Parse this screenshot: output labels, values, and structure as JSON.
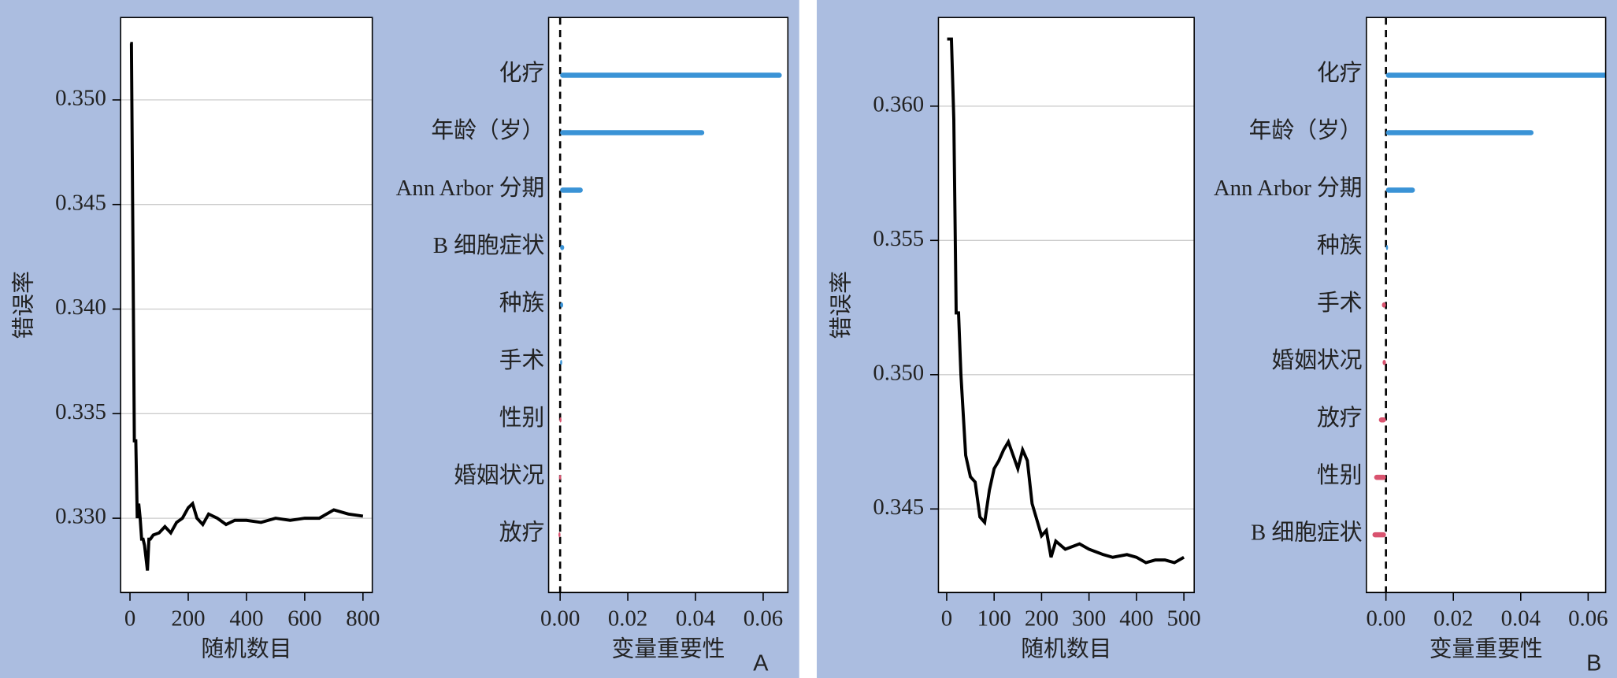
{
  "chart_data": [
    {
      "type": "line",
      "y_label": "错误率",
      "x_label": "随机数目",
      "color": "#000000",
      "grid": true,
      "x": [
        1,
        5,
        10,
        15,
        20,
        25,
        30,
        35,
        40,
        45,
        50,
        60,
        65,
        70,
        80,
        100,
        120,
        140,
        160,
        180,
        200,
        215,
        230,
        250,
        270,
        300,
        330,
        360,
        400,
        450,
        500,
        550,
        600,
        650,
        700,
        750,
        800
      ],
      "values": [
        0.3527,
        0.3527,
        0.3434,
        0.3337,
        0.3337,
        0.33,
        0.3307,
        0.33,
        0.329,
        0.329,
        0.3287,
        0.3275,
        0.329,
        0.329,
        0.3292,
        0.3293,
        0.3296,
        0.3293,
        0.3298,
        0.33,
        0.3305,
        0.3307,
        0.33,
        0.3297,
        0.3302,
        0.33,
        0.3297,
        0.3299,
        0.3299,
        0.3298,
        0.33,
        0.3299,
        0.33,
        0.33,
        0.3304,
        0.3302,
        0.3301
      ],
      "xlim": [
        -32,
        832
      ],
      "xticks": [
        0,
        200,
        400,
        600,
        800
      ],
      "ylim": [
        0.32645,
        0.35394
      ],
      "yticks": [
        {
          "value": 0.33,
          "label": "0.330"
        },
        0.335,
        {
          "value": 0.34,
          "label": "0.340"
        },
        0.345,
        {
          "value": 0.35,
          "label": "0.350"
        }
      ]
    },
    {
      "type": "hbar",
      "x_label": "变量重要性",
      "panel_label": "A",
      "categories": [
        "化疗",
        "年龄（岁）",
        "Ann Arbor 分期",
        "B 细胞症状",
        "种族",
        "手术",
        "性别",
        "婚姻状况",
        "放疗"
      ],
      "values": [
        0.0655,
        0.0426,
        0.0067,
        0.0012,
        0.0009,
        0.0003,
        -0.0002,
        -0.0003,
        -0.0005
      ],
      "colors": [
        "#3a93d6",
        "#3a93d6",
        "#3a93d6",
        "#3a93d6",
        "#3a93d6",
        "#3a93d6",
        "#d9536f",
        "#d9536f",
        "#d9536f"
      ],
      "xlim": [
        -0.0034,
        0.0673
      ],
      "xticks": [
        {
          "value": 0,
          "label": "0.00"
        },
        0.02,
        0.04,
        0.06
      ]
    },
    {
      "type": "line",
      "y_label": "错误率",
      "x_label": "随机数目",
      "color": "#000000",
      "grid": true,
      "x": [
        1,
        10,
        15,
        20,
        25,
        30,
        40,
        50,
        60,
        70,
        80,
        90,
        100,
        110,
        120,
        130,
        140,
        150,
        160,
        170,
        180,
        200,
        210,
        220,
        230,
        250,
        280,
        300,
        330,
        350,
        380,
        400,
        420,
        440,
        460,
        480,
        500
      ],
      "values": [
        0.3625,
        0.3625,
        0.3595,
        0.3523,
        0.3523,
        0.35,
        0.347,
        0.3462,
        0.346,
        0.3447,
        0.3445,
        0.3457,
        0.3465,
        0.3468,
        0.3472,
        0.3475,
        0.347,
        0.3465,
        0.3472,
        0.3468,
        0.3452,
        0.344,
        0.3442,
        0.3432,
        0.3438,
        0.3435,
        0.3437,
        0.3435,
        0.3433,
        0.3432,
        0.3433,
        0.3432,
        0.343,
        0.3431,
        0.3431,
        0.343,
        0.3432
      ],
      "xlim": [
        -17.4,
        521.7
      ],
      "xticks": [
        0,
        100,
        200,
        300,
        400,
        500
      ],
      "ylim": [
        0.34189,
        0.3633
      ],
      "yticks": [
        0.345,
        {
          "value": 0.35,
          "label": "0.350"
        },
        0.355,
        {
          "value": 0.36,
          "label": "0.360"
        }
      ]
    },
    {
      "type": "hbar",
      "x_label": "变量重要性",
      "panel_label": "B",
      "categories": [
        "化疗",
        "年龄（岁）",
        "Ann Arbor 分期",
        "种族",
        "手术",
        "婚姻状况",
        "放疗",
        "性别",
        "B 细胞症状"
      ],
      "values": [
        0.066,
        0.0438,
        0.0086,
        0.0003,
        -0.0012,
        -0.001,
        -0.0021,
        -0.0035,
        -0.004
      ],
      "colors": [
        "#3a93d6",
        "#3a93d6",
        "#3a93d6",
        "#3a93d6",
        "#d9536f",
        "#d9536f",
        "#d9536f",
        "#d9536f",
        "#d9536f"
      ],
      "xlim": [
        -0.0058,
        0.0652
      ],
      "xticks": [
        {
          "value": 0,
          "label": "0.00"
        },
        0.02,
        0.04,
        0.06
      ]
    }
  ]
}
